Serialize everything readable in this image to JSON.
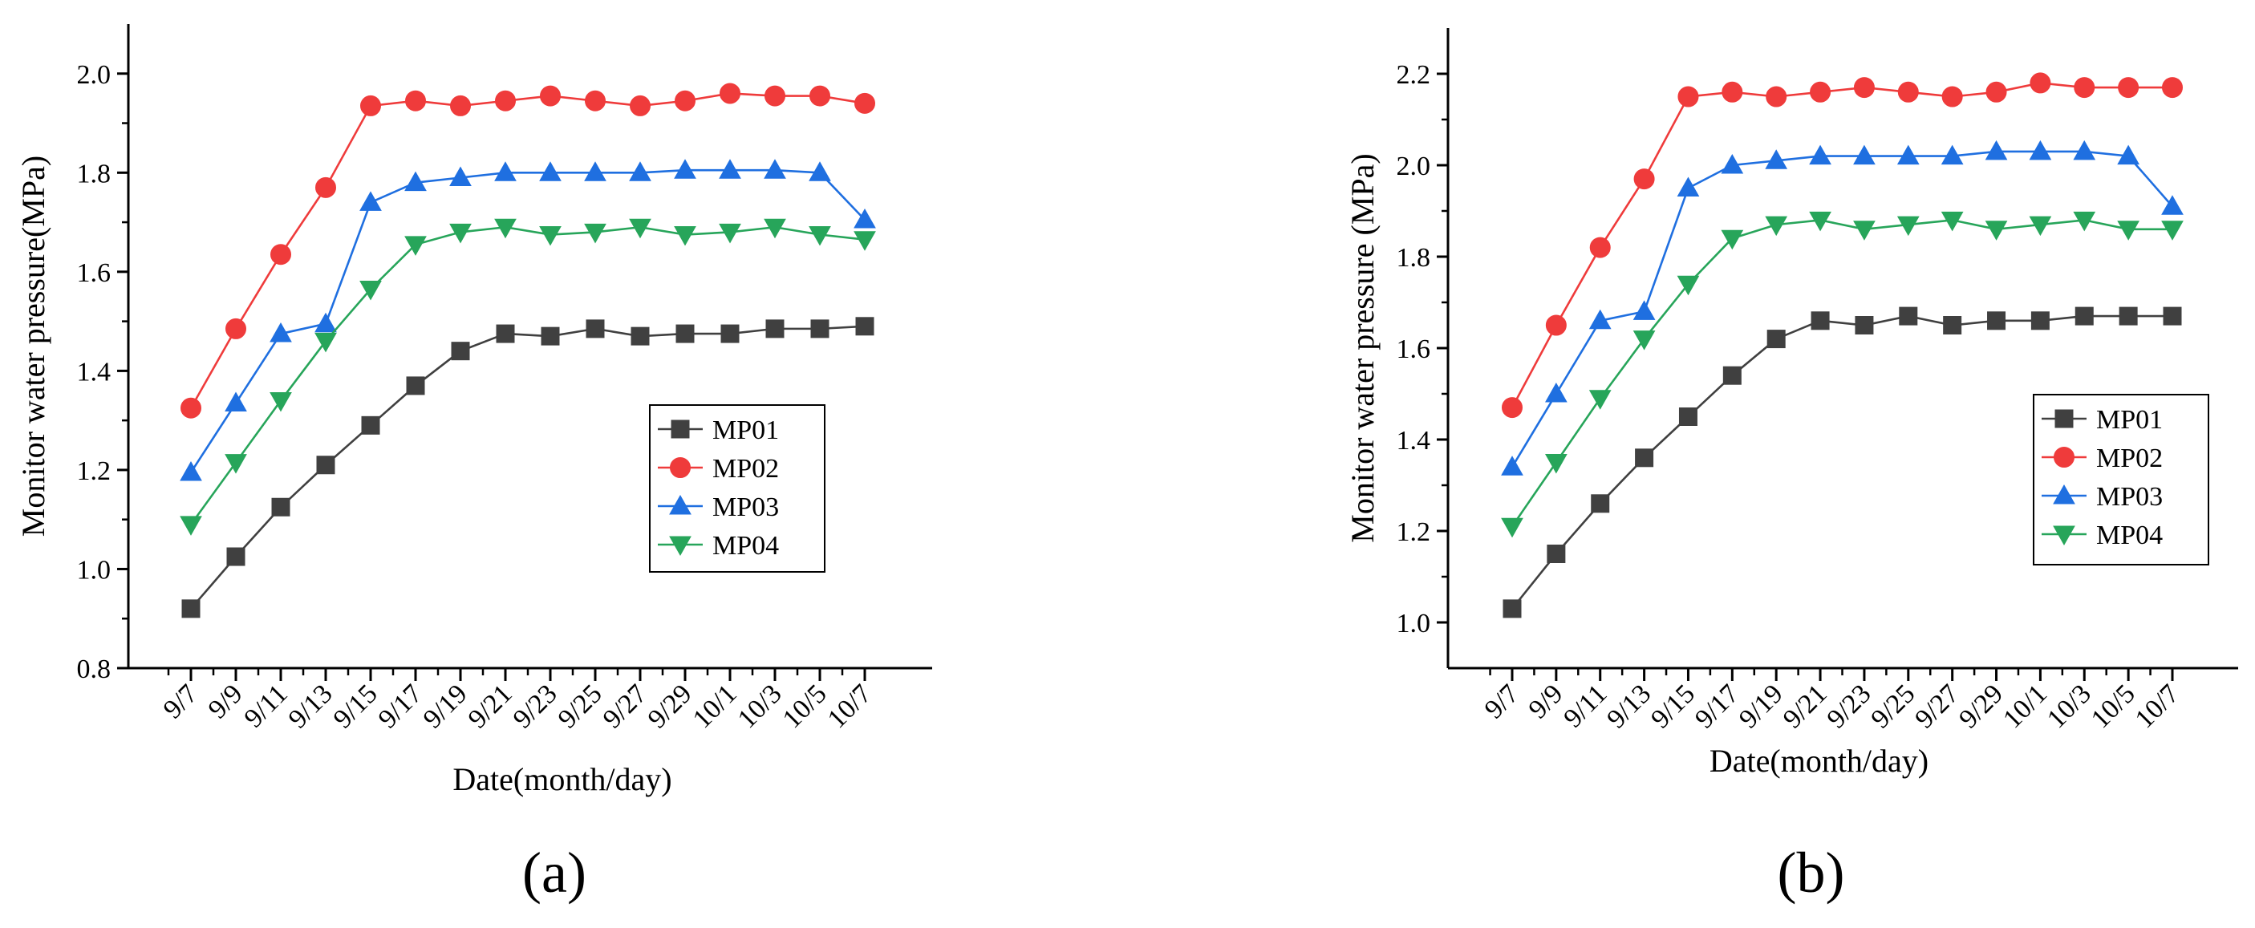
{
  "colors": {
    "MP01": "#404040",
    "MP02": "#ef3b3b",
    "MP03": "#1f6fe0",
    "MP04": "#27a55a"
  },
  "chart_data": [
    {
      "type": "line",
      "panel_label": "(a)",
      "xlabel": "Date(month/day)",
      "ylabel": "Monitor water pressure(MPa)",
      "categories": [
        "9/7",
        "9/9",
        "9/11",
        "9/13",
        "9/15",
        "9/17",
        "9/19",
        "9/21",
        "9/23",
        "9/25",
        "9/27",
        "9/29",
        "10/1",
        "10/3",
        "10/5",
        "10/7"
      ],
      "ylim": [
        0.8,
        2.1
      ],
      "yticks": [
        0.8,
        1.0,
        1.2,
        1.4,
        1.6,
        1.8,
        2.0
      ],
      "ytick_labels": [
        "0.8",
        "1.0",
        "1.2",
        "1.4",
        "1.6",
        "1.8",
        "2.0"
      ],
      "legend_position": "center-right",
      "series": [
        {
          "name": "MP01",
          "marker": "square",
          "values": [
            0.92,
            1.025,
            1.125,
            1.21,
            1.29,
            1.37,
            1.44,
            1.475,
            1.47,
            1.485,
            1.47,
            1.475,
            1.475,
            1.485,
            1.485,
            1.49
          ]
        },
        {
          "name": "MP02",
          "marker": "circle",
          "values": [
            1.325,
            1.485,
            1.635,
            1.77,
            1.935,
            1.945,
            1.935,
            1.945,
            1.955,
            1.945,
            1.935,
            1.945,
            1.96,
            1.955,
            1.955,
            1.94
          ]
        },
        {
          "name": "MP03",
          "marker": "triangle-up",
          "values": [
            1.195,
            1.335,
            1.475,
            1.495,
            1.74,
            1.78,
            1.79,
            1.8,
            1.8,
            1.8,
            1.8,
            1.805,
            1.805,
            1.805,
            1.8,
            1.705
          ]
        },
        {
          "name": "MP04",
          "marker": "triangle-down",
          "values": [
            1.09,
            1.215,
            1.34,
            1.46,
            1.565,
            1.655,
            1.68,
            1.69,
            1.675,
            1.68,
            1.69,
            1.675,
            1.68,
            1.69,
            1.675,
            1.665
          ]
        }
      ]
    },
    {
      "type": "line",
      "panel_label": "(b)",
      "xlabel": "Date(month/day)",
      "ylabel": "Monitor water pressure (MPa)",
      "categories": [
        "9/7",
        "9/9",
        "9/11",
        "9/13",
        "9/15",
        "9/17",
        "9/19",
        "9/21",
        "9/23",
        "9/25",
        "9/27",
        "9/29",
        "10/1",
        "10/3",
        "10/5",
        "10/7"
      ],
      "ylim": [
        0.9,
        2.3
      ],
      "yticks": [
        1.0,
        1.2,
        1.4,
        1.6,
        1.8,
        2.0,
        2.2
      ],
      "ytick_labels": [
        "1.0",
        "1.2",
        "1.4",
        "1.6",
        "1.8",
        "2.0",
        "2.2"
      ],
      "legend_position": "center-right",
      "series": [
        {
          "name": "MP01",
          "marker": "square",
          "values": [
            1.03,
            1.15,
            1.26,
            1.36,
            1.45,
            1.54,
            1.62,
            1.66,
            1.65,
            1.67,
            1.65,
            1.66,
            1.66,
            1.67,
            1.67,
            1.67
          ]
        },
        {
          "name": "MP02",
          "marker": "circle",
          "values": [
            1.47,
            1.65,
            1.82,
            1.97,
            2.15,
            2.16,
            2.15,
            2.16,
            2.17,
            2.16,
            2.15,
            2.16,
            2.18,
            2.17,
            2.17,
            2.17
          ]
        },
        {
          "name": "MP03",
          "marker": "triangle-up",
          "values": [
            1.34,
            1.5,
            1.66,
            1.68,
            1.95,
            2.0,
            2.01,
            2.02,
            2.02,
            2.02,
            2.02,
            2.03,
            2.03,
            2.03,
            2.02,
            1.91
          ]
        },
        {
          "name": "MP04",
          "marker": "triangle-down",
          "values": [
            1.21,
            1.35,
            1.49,
            1.62,
            1.74,
            1.84,
            1.87,
            1.88,
            1.86,
            1.87,
            1.88,
            1.86,
            1.87,
            1.88,
            1.86,
            1.86
          ]
        }
      ]
    }
  ]
}
